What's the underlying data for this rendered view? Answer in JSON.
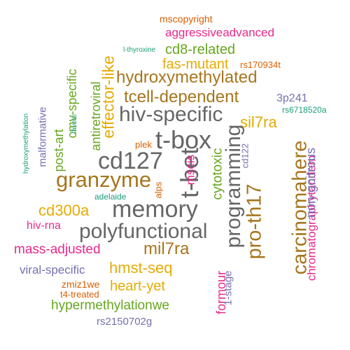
{
  "colors": {
    "background": "#ffffff",
    "orange": "#d95f02",
    "purple": "#7570b3",
    "magenta": "#e7298a",
    "green": "#66a61e",
    "gold": "#e6ab02",
    "brown": "#a6761d",
    "gray": "#666666",
    "teal": "#1b9e77"
  },
  "words": [
    {
      "text": "mscopyright",
      "color": "orange"
    },
    {
      "text": "aggressiveadvanced",
      "color": "magenta"
    },
    {
      "text": "l-thyroxine",
      "color": "teal"
    },
    {
      "text": "cd8-related",
      "color": "green"
    },
    {
      "text": "fas-mutant",
      "color": "gold"
    },
    {
      "text": "rs170934t",
      "color": "orange"
    },
    {
      "text": "hydroxymethylated",
      "color": "brown"
    },
    {
      "text": "effector-like",
      "color": "gold"
    },
    {
      "text": "cmv-specific",
      "color": "green"
    },
    {
      "text": "antiretroviral",
      "color": "green"
    },
    {
      "text": "tcell-dependent",
      "color": "brown"
    },
    {
      "text": "3p241",
      "color": "purple"
    },
    {
      "text": "rs6718520a",
      "color": "teal"
    },
    {
      "text": "hiv-specific",
      "color": "gray"
    },
    {
      "text": "sil7ra",
      "color": "gold"
    },
    {
      "text": "malformative",
      "color": "purple"
    },
    {
      "text": "post-art",
      "color": "green"
    },
    {
      "text": "favors",
      "color": "teal"
    },
    {
      "text": "hydroxymethylation",
      "color": "teal"
    },
    {
      "text": "plek",
      "color": "orange"
    },
    {
      "text": "t-box",
      "color": "gray"
    },
    {
      "text": "cd127",
      "color": "gray"
    },
    {
      "text": "t-bet",
      "color": "gray"
    },
    {
      "text": "mscis",
      "color": "magenta"
    },
    {
      "text": "cytotoxic",
      "color": "green"
    },
    {
      "text": "cd122",
      "color": "purple"
    },
    {
      "text": "programming",
      "color": "gray"
    },
    {
      "text": "carcinomahere",
      "color": "brown"
    },
    {
      "text": "chromatographytandem",
      "color": "magenta"
    },
    {
      "text": "non-goitrous",
      "color": "purple"
    },
    {
      "text": "granzyme",
      "color": "brown"
    },
    {
      "text": "adelaide",
      "color": "teal"
    },
    {
      "text": "alps",
      "color": "orange"
    },
    {
      "text": "memory",
      "color": "gray"
    },
    {
      "text": "cd300a",
      "color": "gold"
    },
    {
      "text": "pro-th17",
      "color": "brown"
    },
    {
      "text": "hiv-rna",
      "color": "magenta"
    },
    {
      "text": "polyfunctional",
      "color": "gray"
    },
    {
      "text": "mil7ra",
      "color": "brown"
    },
    {
      "text": "mass-adjusted",
      "color": "magenta"
    },
    {
      "text": "hmst-seq",
      "color": "gold"
    },
    {
      "text": "viral-specific",
      "color": "purple"
    },
    {
      "text": "formour",
      "color": "magenta"
    },
    {
      "text": "1-stage",
      "color": "purple"
    },
    {
      "text": "zmiz1we",
      "color": "orange"
    },
    {
      "text": "heart-yet",
      "color": "gold"
    },
    {
      "text": "t4-treated",
      "color": "orange"
    },
    {
      "text": "hypermethylationwe",
      "color": "green"
    },
    {
      "text": "rs2150702g",
      "color": "purple"
    }
  ]
}
